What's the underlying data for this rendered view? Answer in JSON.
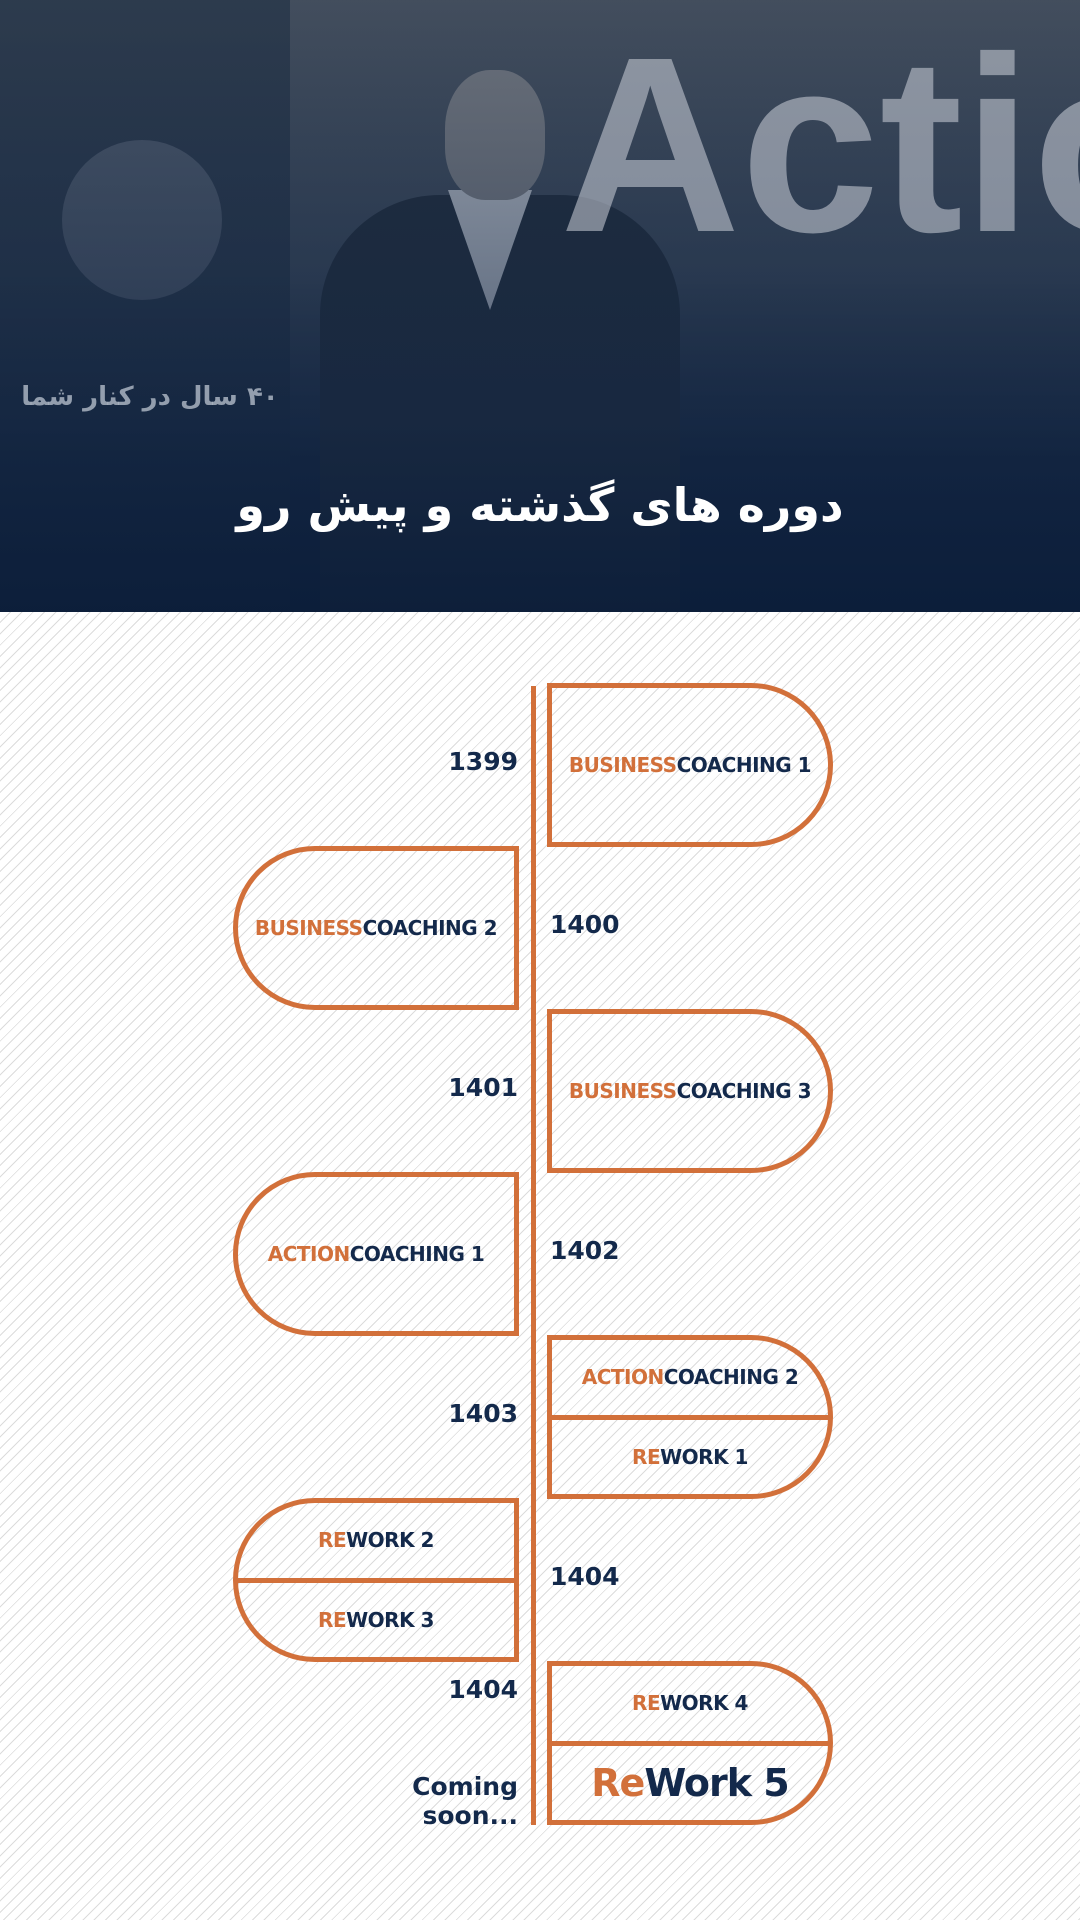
{
  "header": {
    "title": "دوره های گذشته و پیش رو",
    "background_text": "Actio COAC",
    "wall_text": "۴۰ سال در کنار شما"
  },
  "colors": {
    "accent": "#d2703a",
    "navy": "#13294b"
  },
  "timeline": [
    {
      "year": "1399",
      "side": "right",
      "items": [
        {
          "accent": "BUSINESS",
          "text": "COACHING 1"
        }
      ]
    },
    {
      "year": "1400",
      "side": "left",
      "items": [
        {
          "accent": "BUSINESS",
          "text": "COACHING 2"
        }
      ]
    },
    {
      "year": "1401",
      "side": "right",
      "items": [
        {
          "accent": "BUSINESS",
          "text": "COACHING 3"
        }
      ]
    },
    {
      "year": "1402",
      "side": "left",
      "items": [
        {
          "accent": "ACTION",
          "text": "COACHING 1"
        }
      ]
    },
    {
      "year": "1403",
      "side": "right",
      "items": [
        {
          "accent": "ACTION",
          "text": "COACHING 2"
        },
        {
          "accent": "RE",
          "text": "WORK 1"
        }
      ]
    },
    {
      "year": "1404",
      "side": "left",
      "items": [
        {
          "accent": "RE",
          "text": "WORK 2"
        },
        {
          "accent": "RE",
          "text": "WORK 3"
        }
      ]
    },
    {
      "year": "1404",
      "side": "right",
      "items": [
        {
          "accent": "RE",
          "text": "WORK 4"
        },
        {
          "accent": "Re",
          "text": "Work 5"
        }
      ]
    }
  ],
  "coming_soon": "Coming soon..."
}
